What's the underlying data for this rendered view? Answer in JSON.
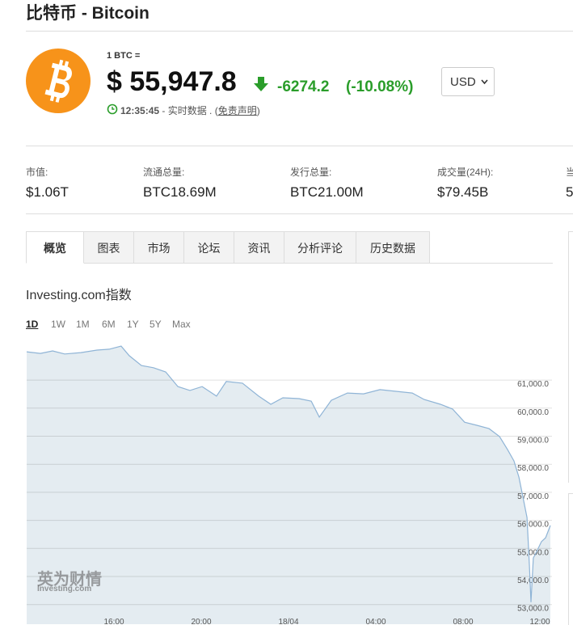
{
  "header": {
    "title": "比特币 - Bitcoin"
  },
  "quote": {
    "unit": "1 BTC =",
    "price": "$ 55,947.8",
    "change": "-6274.2",
    "change_pct": "(-10.08%)",
    "currency": "USD",
    "time": "12:35:45",
    "status": "- 实时数据 . (",
    "disclaimer": "免责声明",
    "status_end": ")"
  },
  "stats": [
    {
      "label": "市值:",
      "value": "$1.06T"
    },
    {
      "label": "流通总量:",
      "value": "BTC18.69M"
    },
    {
      "label": "发行总量:",
      "value": "BTC21.00M"
    },
    {
      "label": "成交量(24H):",
      "value": "$79.45B"
    },
    {
      "label": "当",
      "value": "5"
    }
  ],
  "tabs": [
    "概览",
    "图表",
    "市场",
    "论坛",
    "资讯",
    "分析评论",
    "历史数据"
  ],
  "index_title": "Investing.com指数",
  "ranges": [
    "1D",
    "1W",
    "1M",
    "6M",
    "1Y",
    "5Y",
    "Max"
  ],
  "watermark": {
    "brand": "英为财情",
    "site": "Investing.com"
  },
  "chart_data": {
    "type": "area",
    "x": [
      12.0,
      12.63,
      13.19,
      13.74,
      14.48,
      15.22,
      15.78,
      16.33,
      16.7,
      17.26,
      17.81,
      18.37,
      18.93,
      19.48,
      20.04,
      20.7,
      21.15,
      21.89,
      22.63,
      23.19,
      23.74,
      24.48,
      25.04,
      25.41,
      25.96,
      26.7,
      27.44,
      28.19,
      28.93,
      29.67,
      30.22,
      30.96,
      31.52,
      32.07,
      32.63,
      33.19,
      33.67,
      34.04,
      34.33,
      34.56,
      34.78,
      34.93,
      35.04,
      35.11,
      35.22,
      35.41,
      35.59,
      35.78,
      36.0
    ],
    "values": [
      62010,
      61950,
      62040,
      61930,
      61980,
      62070,
      62100,
      62210,
      61870,
      61520,
      61440,
      61290,
      60770,
      60630,
      60770,
      60430,
      60950,
      60890,
      60430,
      60140,
      60370,
      60340,
      60250,
      59680,
      60280,
      60540,
      60510,
      60660,
      60600,
      60540,
      60310,
      60140,
      59970,
      59500,
      59390,
      59270,
      58990,
      58520,
      58120,
      57540,
      56680,
      56100,
      54370,
      53080,
      54660,
      54950,
      55240,
      55380,
      55820
    ],
    "color": "#8fb4d6",
    "fill": "#e4ecf1",
    "xlim": [
      12,
      36
    ],
    "ylim": [
      52300,
      62300
    ],
    "xticks": [
      {
        "value": 16,
        "label": "16:00"
      },
      {
        "value": 20,
        "label": "20:00"
      },
      {
        "value": 24,
        "label": "18/04"
      },
      {
        "value": 28,
        "label": "04:00"
      },
      {
        "value": 32,
        "label": "08:00"
      },
      {
        "value": 36,
        "label": "12:00"
      }
    ],
    "yticks": [
      {
        "value": 61000,
        "label": "61,000.0"
      },
      {
        "value": 60000,
        "label": "60,000.0"
      },
      {
        "value": 59000,
        "label": "59,000.0"
      },
      {
        "value": 58000,
        "label": "58,000.0"
      },
      {
        "value": 57000,
        "label": "57,000.0"
      },
      {
        "value": 56000,
        "label": "56,000.0"
      },
      {
        "value": 55000,
        "label": "55,000.0"
      },
      {
        "value": 54000,
        "label": "54,000.0"
      },
      {
        "value": 53000,
        "label": "53,000.0"
      }
    ],
    "grid": true
  }
}
